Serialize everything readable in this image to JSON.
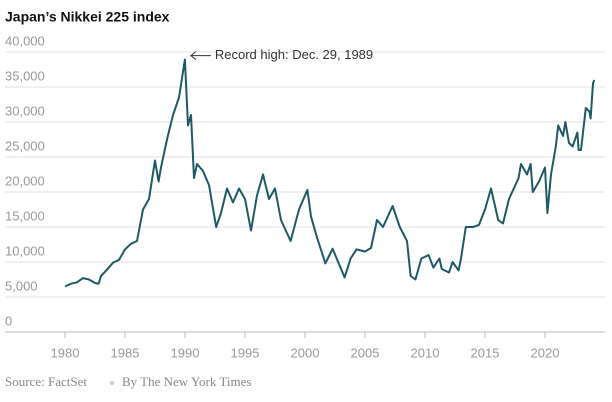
{
  "chart_data": {
    "type": "line",
    "title": "Japan’s Nikkei 225 index",
    "source": "Source: FactSet",
    "credit": "By The New York Times",
    "annotation": {
      "text": "Record high: Dec. 29, 1989",
      "x": 1989.99,
      "y": 38916
    },
    "xlim": [
      1975,
      2025
    ],
    "xticks": [
      1980,
      1985,
      1990,
      1995,
      2000,
      2005,
      2010,
      2015,
      2020
    ],
    "ylim": [
      0,
      40000
    ],
    "yticks": [
      0,
      {
        "value": 5000,
        "label": "5,000"
      },
      {
        "value": 10000,
        "label": "10,000"
      },
      {
        "value": 15000,
        "label": "15,000"
      },
      {
        "value": 20000,
        "label": "20,000"
      },
      {
        "value": 25000,
        "label": "25,000"
      },
      {
        "value": 30000,
        "label": "30,000"
      },
      {
        "value": 35000,
        "label": "35,000"
      },
      {
        "value": 40000,
        "label": "40,000"
      }
    ],
    "grid": true,
    "x": [
      1980.0,
      1980.5,
      1981.0,
      1981.5,
      1982.0,
      1982.5,
      1982.8,
      1983.0,
      1983.5,
      1984.0,
      1984.5,
      1985.0,
      1985.5,
      1986.0,
      1986.5,
      1987.0,
      1987.5,
      1987.8,
      1988.0,
      1988.5,
      1989.0,
      1989.5,
      1989.99,
      1990.25,
      1990.5,
      1990.75,
      1991.0,
      1991.5,
      1992.0,
      1992.6,
      1993.0,
      1993.5,
      1994.0,
      1994.5,
      1995.0,
      1995.5,
      1996.0,
      1996.5,
      1997.0,
      1997.5,
      1998.0,
      1998.8,
      1999.5,
      2000.2,
      2000.5,
      2001.0,
      2001.7,
      2002.3,
      2003.3,
      2003.8,
      2004.3,
      2005.0,
      2005.5,
      2006.0,
      2006.5,
      2007.3,
      2007.9,
      2008.5,
      2008.8,
      2009.2,
      2009.7,
      2010.3,
      2010.7,
      2011.2,
      2011.4,
      2012.0,
      2012.3,
      2012.8,
      2013.0,
      2013.4,
      2014.0,
      2014.5,
      2015.0,
      2015.5,
      2016.1,
      2016.5,
      2017.0,
      2017.8,
      2018.0,
      2018.5,
      2018.8,
      2018.98,
      2019.5,
      2020.0,
      2020.2,
      2020.5,
      2020.9,
      2021.1,
      2021.5,
      2021.7,
      2022.0,
      2022.3,
      2022.7,
      2022.8,
      2023.0,
      2023.4,
      2023.7,
      2023.8,
      2024.0,
      2024.1
    ],
    "series": [
      {
        "name": "Nikkei 225",
        "color": "#1d5a66",
        "values": [
          6500,
          6900,
          7100,
          7700,
          7500,
          7000,
          6900,
          8000,
          8900,
          9900,
          10300,
          11800,
          12600,
          13000,
          17500,
          19000,
          24500,
          21500,
          23500,
          27500,
          31000,
          33500,
          38916,
          29500,
          31000,
          22000,
          24000,
          23000,
          21000,
          15000,
          17000,
          20500,
          18500,
          20500,
          19000,
          14500,
          19500,
          22500,
          19000,
          20500,
          16000,
          13000,
          17500,
          20300,
          16500,
          13500,
          9800,
          11900,
          7800,
          10500,
          11800,
          11500,
          12000,
          16000,
          15000,
          18000,
          15000,
          13000,
          8000,
          7500,
          10500,
          11000,
          9200,
          10500,
          9000,
          8500,
          10000,
          8800,
          10500,
          15000,
          15000,
          15300,
          17500,
          20500,
          16000,
          15500,
          19000,
          22000,
          24000,
          22500,
          24000,
          20000,
          21500,
          23500,
          17000,
          22500,
          26500,
          29500,
          28000,
          30000,
          27000,
          26500,
          28500,
          26000,
          26000,
          32000,
          31500,
          30500,
          35500,
          36000
        ]
      }
    ]
  }
}
